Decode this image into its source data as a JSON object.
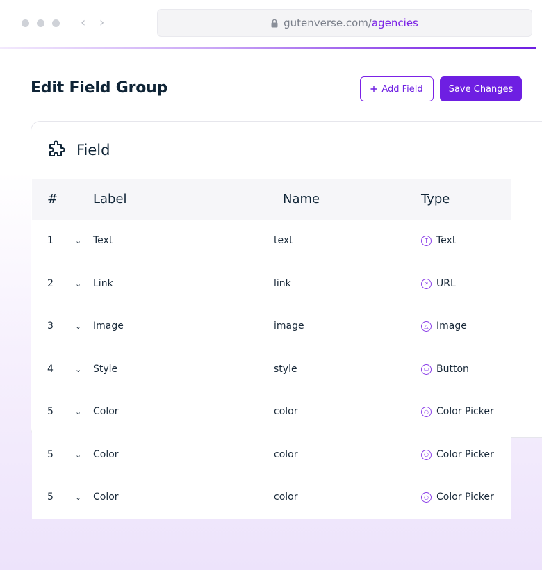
{
  "browser": {
    "url_domain": "gutenverse.com/",
    "url_path": "agencies",
    "back_glyph": "‹",
    "forward_glyph": "›"
  },
  "header": {
    "title": "Edit Field Group",
    "add_label": "Add Field",
    "save_label": "Save Changes"
  },
  "card": {
    "title": "Field",
    "icon": "puzzle-icon"
  },
  "table": {
    "columns": [
      "#",
      "Label",
      "Name",
      "Type"
    ],
    "rows": [
      {
        "num": "1",
        "label": "Text",
        "name": "text",
        "type": "Text",
        "icon": "text-type-icon",
        "glyph": "T"
      },
      {
        "num": "2",
        "label": "Link",
        "name": "link",
        "type": "URL",
        "icon": "link-type-icon",
        "glyph": "∞"
      },
      {
        "num": "3",
        "label": "Image",
        "name": "image",
        "type": "Image",
        "icon": "image-type-icon",
        "glyph": "△"
      },
      {
        "num": "4",
        "label": "Style",
        "name": "style",
        "type": "Button",
        "icon": "button-type-icon",
        "glyph": "▭"
      },
      {
        "num": "5",
        "label": "Color",
        "name": "color",
        "type": "Color Picker",
        "icon": "color-picker-type-icon",
        "glyph": "○"
      },
      {
        "num": "5",
        "label": "Color",
        "name": "color",
        "type": "Color Picker",
        "icon": "color-picker-type-icon",
        "glyph": "○"
      },
      {
        "num": "5",
        "label": "Color",
        "name": "color",
        "type": "Color Picker",
        "icon": "color-picker-type-icon",
        "glyph": "○"
      }
    ]
  },
  "colors": {
    "accent": "#6e1fe2",
    "text": "#0f2436"
  }
}
